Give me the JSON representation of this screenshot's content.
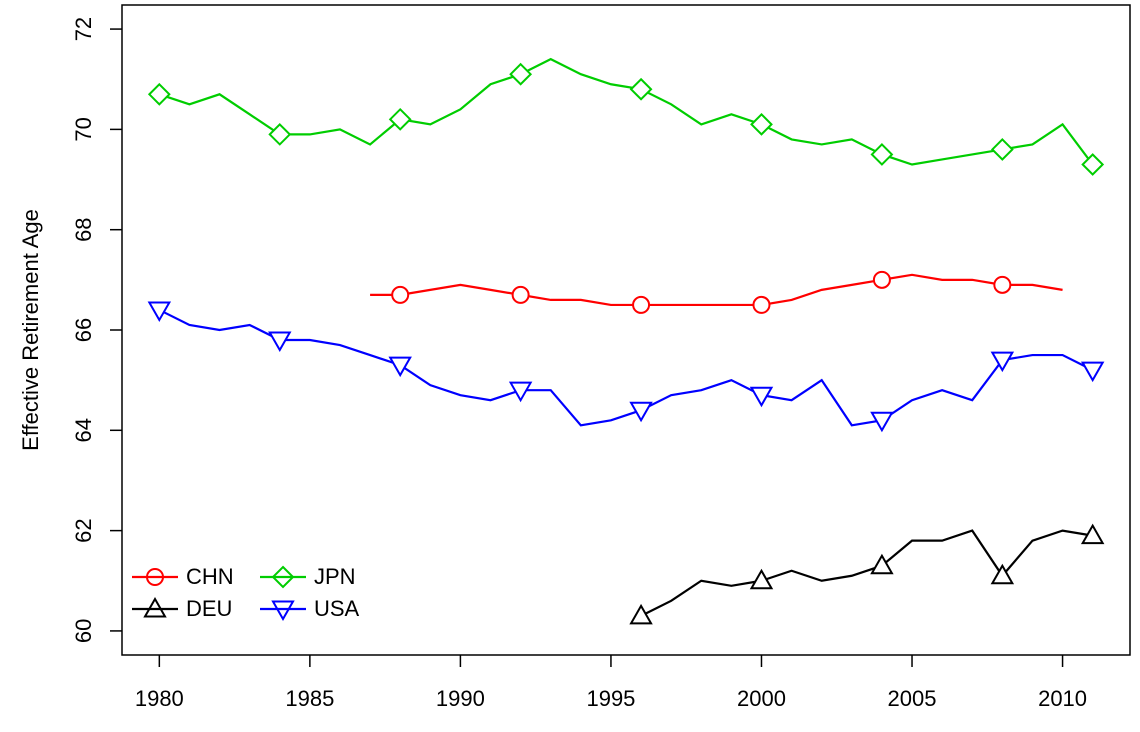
{
  "chart_data": {
    "type": "line",
    "y_label": "Effective Retirement Age",
    "x": [
      1980,
      1981,
      1982,
      1983,
      1984,
      1985,
      1986,
      1987,
      1988,
      1989,
      1990,
      1991,
      1992,
      1993,
      1994,
      1995,
      1996,
      1997,
      1998,
      1999,
      2000,
      2001,
      2002,
      2003,
      2004,
      2005,
      2006,
      2007,
      2008,
      2009,
      2010,
      2011
    ],
    "series": [
      {
        "name": "CHN",
        "color": "#ff0000",
        "marker": "circle",
        "values": [
          null,
          null,
          null,
          null,
          null,
          null,
          null,
          66.7,
          66.7,
          66.8,
          66.9,
          66.8,
          66.7,
          66.6,
          66.6,
          66.5,
          66.5,
          66.5,
          66.5,
          66.5,
          66.5,
          66.6,
          66.8,
          66.9,
          67.0,
          67.1,
          67.0,
          67.0,
          66.9,
          66.9,
          66.8,
          null
        ]
      },
      {
        "name": "DEU",
        "color": "#000000",
        "marker": "triangle-up",
        "values": [
          null,
          null,
          null,
          null,
          null,
          null,
          null,
          null,
          null,
          null,
          null,
          null,
          null,
          null,
          null,
          null,
          60.3,
          60.6,
          61.0,
          60.9,
          61.0,
          61.2,
          61.0,
          61.1,
          61.3,
          61.8,
          61.8,
          62.0,
          61.1,
          61.8,
          62.0,
          61.9
        ]
      },
      {
        "name": "JPN",
        "color": "#00cd00",
        "marker": "diamond",
        "values": [
          70.7,
          70.5,
          70.7,
          70.3,
          69.9,
          69.9,
          70.0,
          69.7,
          70.2,
          70.1,
          70.4,
          70.9,
          71.1,
          71.4,
          71.1,
          70.9,
          70.8,
          70.5,
          70.1,
          70.3,
          70.1,
          69.8,
          69.7,
          69.8,
          69.5,
          69.3,
          69.4,
          69.5,
          69.6,
          69.7,
          70.1,
          69.3
        ]
      },
      {
        "name": "USA",
        "color": "#0000ff",
        "marker": "triangle-down",
        "values": [
          66.4,
          66.1,
          66.0,
          66.1,
          65.8,
          65.8,
          65.7,
          65.5,
          65.3,
          64.9,
          64.7,
          64.6,
          64.8,
          64.8,
          64.1,
          64.2,
          64.4,
          64.7,
          64.8,
          65.0,
          64.7,
          64.6,
          65.0,
          64.1,
          64.2,
          64.6,
          64.8,
          64.6,
          65.4,
          65.5,
          65.5,
          65.2
        ]
      }
    ],
    "xlim": [
      1978.76,
      2012.24
    ],
    "xticks": [
      1980,
      1985,
      1990,
      1995,
      2000,
      2005,
      2010
    ],
    "ylim": [
      59.52,
      72.48
    ],
    "yticks": [
      60,
      62,
      64,
      66,
      68,
      70,
      72
    ],
    "legend": "bottomleft"
  }
}
